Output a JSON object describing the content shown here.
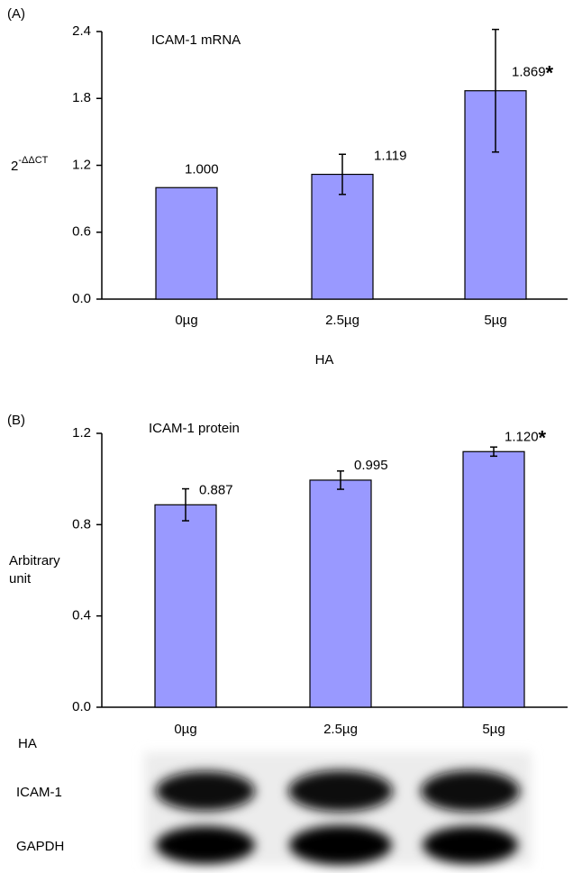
{
  "chart_data": [
    {
      "type": "bar",
      "panel_label": "(A)",
      "title": "ICAM-1 mRNA",
      "categories": [
        "0µg",
        "2.5µg",
        "5µg"
      ],
      "values": [
        1.0,
        1.119,
        1.869
      ],
      "value_labels": [
        "1.000",
        "1.119",
        "1.869"
      ],
      "errors": [
        null,
        0.18,
        0.55
      ],
      "significance": [
        null,
        null,
        "*"
      ],
      "color": "#9999ff",
      "y_label_base": "2",
      "y_label_exponent": "-ΔΔCT",
      "x_label": "HA",
      "ylim": [
        0,
        2.4
      ],
      "yticks": [
        {
          "value": 0,
          "label": "0.0"
        },
        0.6,
        1.2,
        1.8,
        2.4
      ]
    },
    {
      "type": "bar",
      "panel_label": "(B)",
      "title": "ICAM-1 protein",
      "categories": [
        "0µg",
        "2.5µg",
        "5µg"
      ],
      "values": [
        0.887,
        0.995,
        1.12
      ],
      "value_labels": [
        "0.887",
        "0.995",
        "1.120"
      ],
      "errors": [
        0.07,
        0.04,
        0.02
      ],
      "significance": [
        null,
        null,
        "*"
      ],
      "color": "#9999ff",
      "y_label_lines": [
        "Arbitrary",
        "unit"
      ],
      "x_label": "HA",
      "blot_rows": [
        "ICAM-1",
        "GAPDH"
      ],
      "ylim": [
        0,
        1.2
      ],
      "yticks": [
        {
          "value": 0,
          "label": "0.0"
        },
        0.4,
        0.8,
        1.2
      ]
    }
  ]
}
